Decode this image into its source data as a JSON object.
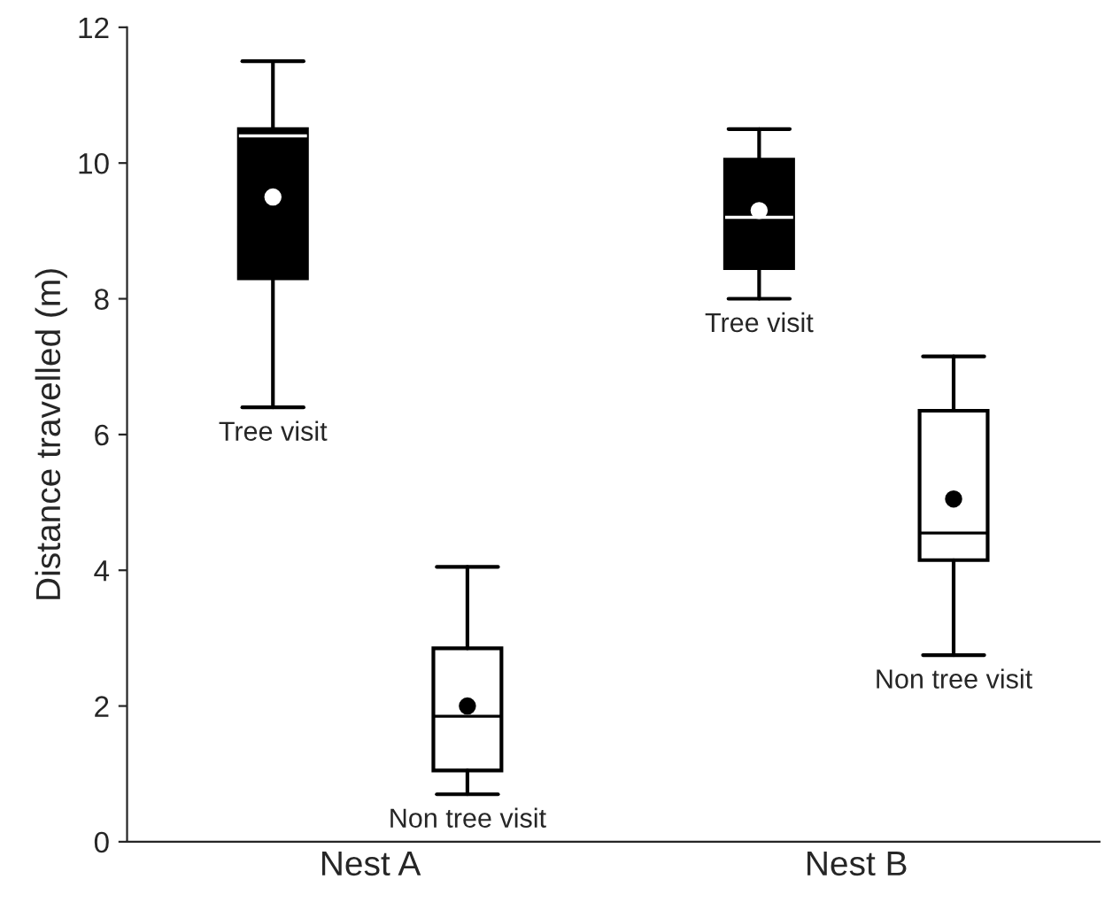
{
  "chart_data": {
    "type": "box",
    "ylabel": "Distance travelled (m)",
    "categories": [
      "Nest A",
      "Nest B"
    ],
    "ylim": [
      0,
      12
    ],
    "yticks": [
      0,
      2,
      4,
      6,
      8,
      10,
      12
    ],
    "grid": false,
    "series": [
      {
        "name": "Tree visit",
        "color": "#000000",
        "boxes": [
          {
            "low": 6.4,
            "q1": 8.3,
            "median": 10.4,
            "q3": 10.5,
            "high": 11.5,
            "mean": 9.5
          },
          {
            "low": 8.0,
            "q1": 8.45,
            "median": 9.2,
            "q3": 10.05,
            "high": 10.5,
            "mean": 9.3
          }
        ]
      },
      {
        "name": "Non tree visit",
        "color": "#ffffff",
        "boxes": [
          {
            "low": 0.7,
            "q1": 1.05,
            "median": 1.85,
            "q3": 2.85,
            "high": 4.05,
            "mean": 2.0
          },
          {
            "low": 2.75,
            "q1": 4.15,
            "median": 4.55,
            "q3": 6.35,
            "high": 7.15,
            "mean": 5.05
          }
        ]
      }
    ]
  }
}
